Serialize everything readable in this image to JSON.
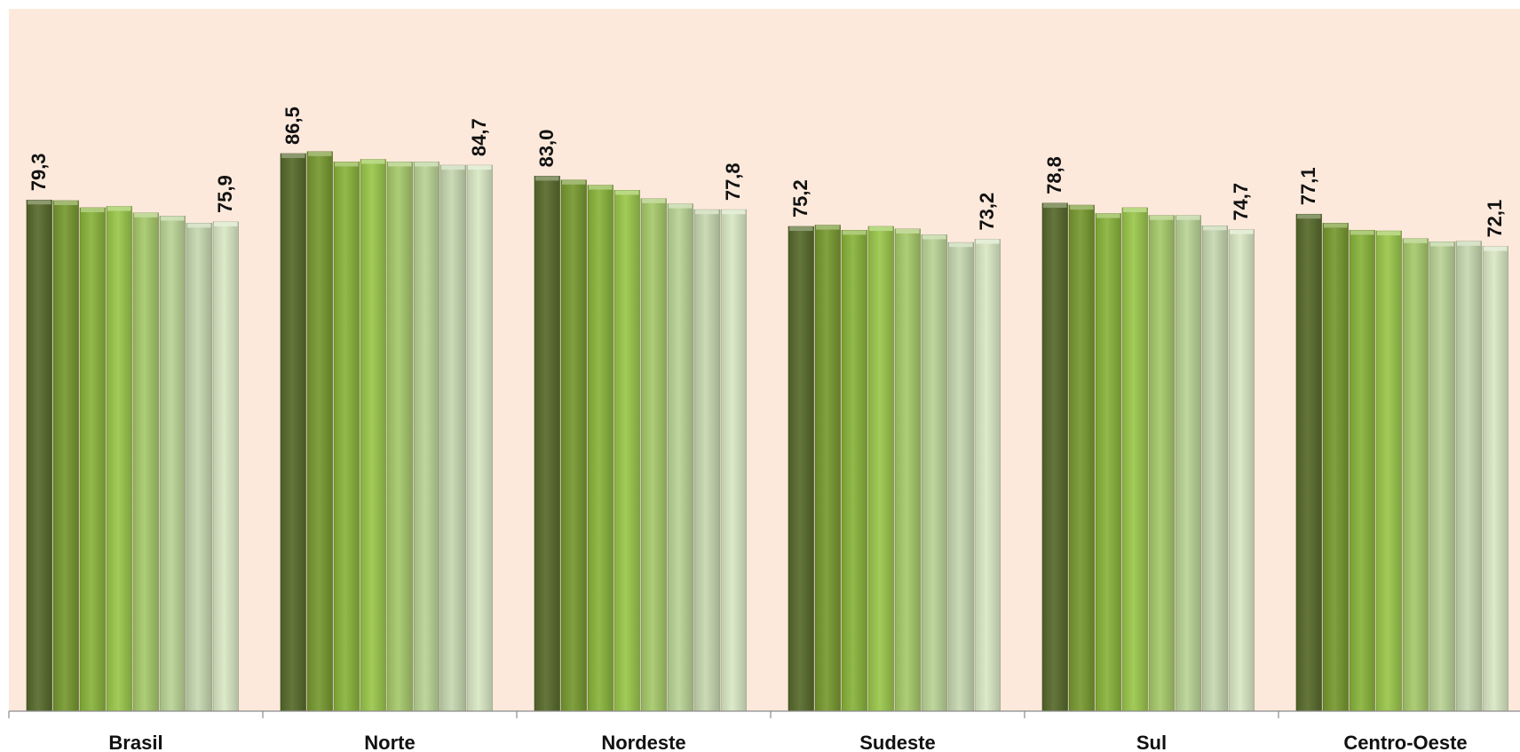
{
  "chart_data": {
    "type": "bar",
    "title": "",
    "xlabel": "",
    "ylabel": "",
    "ylim": [
      0,
      100
    ],
    "grid": false,
    "legend": "none",
    "categories": [
      "Brasil",
      "Norte",
      "Nordeste",
      "Sudeste",
      "Sul",
      "Centro-Oeste"
    ],
    "series": [
      {
        "values": [
          79.3,
          86.5,
          83.0,
          75.2,
          78.8,
          77.1
        ]
      },
      {
        "values": [
          79.2,
          86.8,
          82.4,
          75.4,
          78.5,
          75.7
        ]
      },
      {
        "values": [
          78.1,
          85.2,
          81.6,
          74.6,
          77.2,
          74.6
        ]
      },
      {
        "values": [
          78.3,
          85.6,
          80.8,
          75.2,
          78.1,
          74.5
        ]
      },
      {
        "values": [
          77.3,
          85.2,
          79.5,
          74.8,
          76.9,
          73.3
        ]
      },
      {
        "values": [
          76.8,
          85.2,
          78.7,
          73.9,
          76.9,
          72.8
        ]
      },
      {
        "values": [
          75.7,
          84.7,
          77.8,
          72.7,
          75.3,
          72.9
        ]
      },
      {
        "values": [
          75.9,
          84.7,
          77.8,
          73.2,
          74.7,
          72.1
        ]
      }
    ],
    "value_labels": [
      {
        "category": "Brasil",
        "first": "79,3",
        "last": "75,9"
      },
      {
        "category": "Norte",
        "first": "86,5",
        "last": "84,7"
      },
      {
        "category": "Nordeste",
        "first": "83,0",
        "last": "77,8"
      },
      {
        "category": "Sudeste",
        "first": "75,2",
        "last": "73,2"
      },
      {
        "category": "Sul",
        "first": "78,8",
        "last": "74,7"
      },
      {
        "category": "Centro-Oeste",
        "first": "77,1",
        "last": "72,1"
      }
    ]
  },
  "colors": {
    "plot_background": "#fde9db",
    "axis": "#8c8c8c",
    "bar_shades": [
      "#566a2b",
      "#76992f",
      "#88b33a",
      "#9ac74b",
      "#a6c96a",
      "#b9d396",
      "#c6d8b0",
      "#d9e8c4"
    ]
  }
}
